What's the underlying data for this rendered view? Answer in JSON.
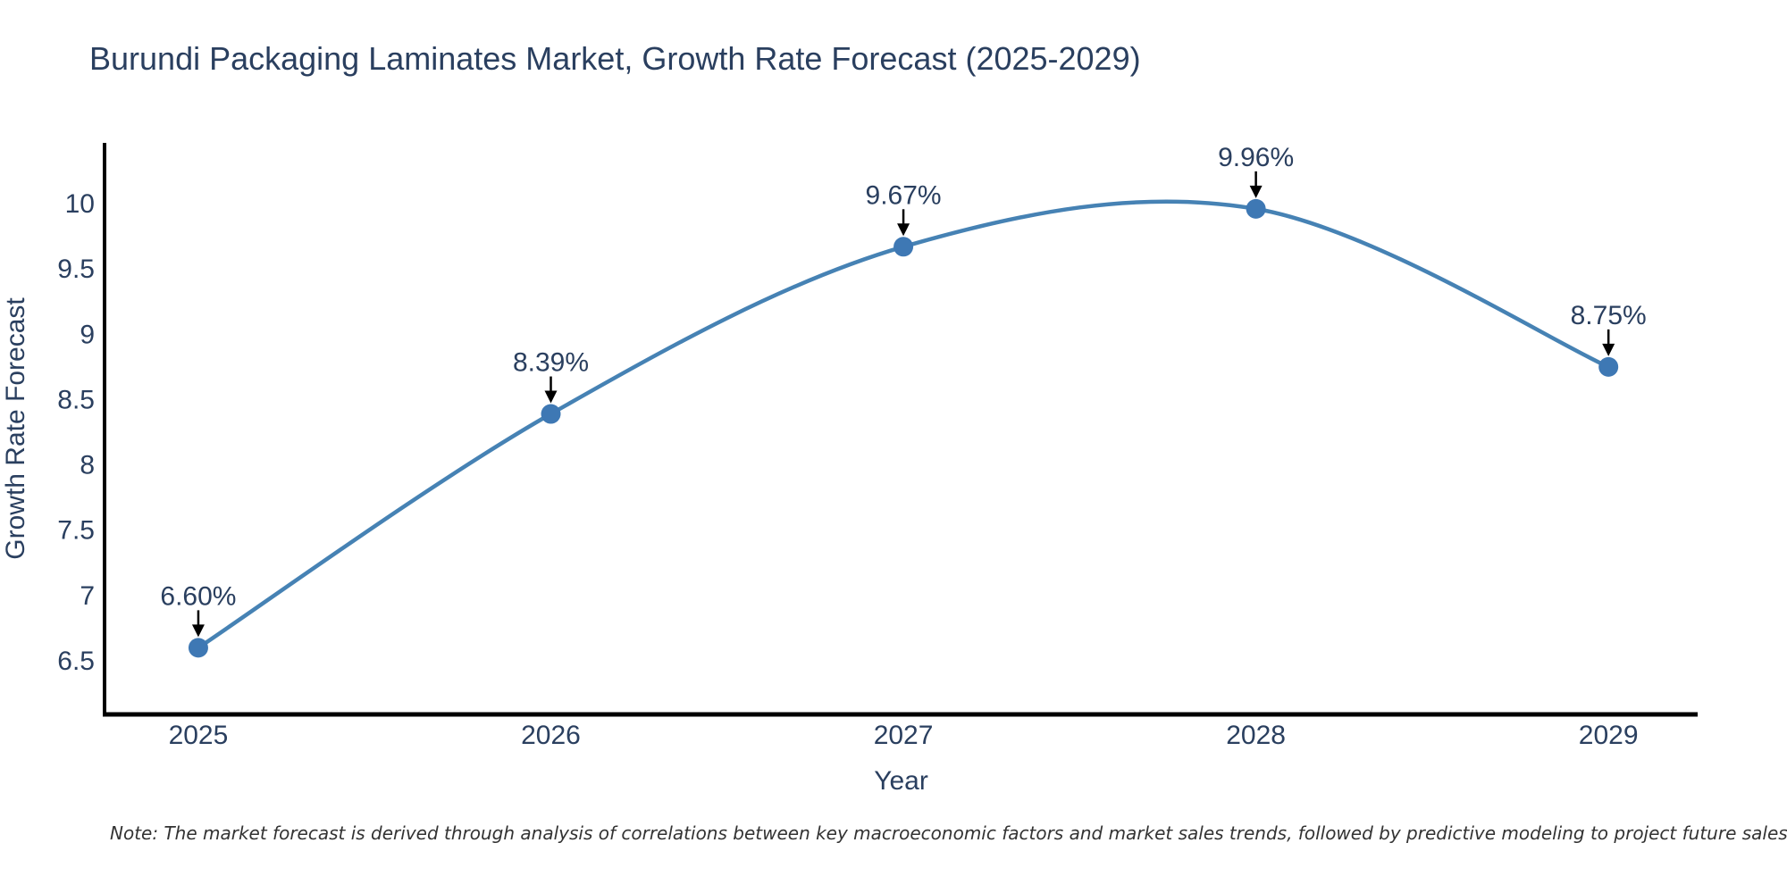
{
  "title": "Burundi Packaging Laminates Market, Growth Rate Forecast (2025-2029)",
  "note": "Note: The market forecast is derived through analysis of correlations between key macroeconomic factors and market sales trends, followed by predictive modeling to project future sales",
  "colors": {
    "text": "#2a3f5f",
    "axis_line": "#000000",
    "note_text": "#333333",
    "background": "#ffffff",
    "line": "#4682b4",
    "marker": "#3e78b4",
    "annotation_arrow": "#000000"
  },
  "chart_data": {
    "type": "line",
    "title": "Burundi Packaging Laminates Market, Growth Rate Forecast (2025-2029)",
    "x": [
      2025,
      2026,
      2027,
      2028,
      2029
    ],
    "values": [
      6.6,
      8.39,
      9.67,
      9.96,
      8.75
    ],
    "point_labels": [
      "6.60%",
      "8.39%",
      "9.67%",
      "9.96%",
      "8.75%"
    ],
    "xlabel": "Year",
    "ylabel": "Growth Rate Forecast",
    "xticks": [
      "2025",
      "2026",
      "2027",
      "2028",
      "2029"
    ],
    "yticks": [
      6.5,
      7,
      7.5,
      8,
      8.5,
      9,
      9.5,
      10
    ],
    "ytick_labels": [
      "6.5",
      "7",
      "7.5",
      "8",
      "8.5",
      "9",
      "9.5",
      "10"
    ],
    "xlim": [
      2024.734,
      2029.253
    ],
    "ylim": [
      6.09,
      10.465
    ],
    "line_shape": "spline",
    "markers": true,
    "grid": false,
    "legend": false
  }
}
